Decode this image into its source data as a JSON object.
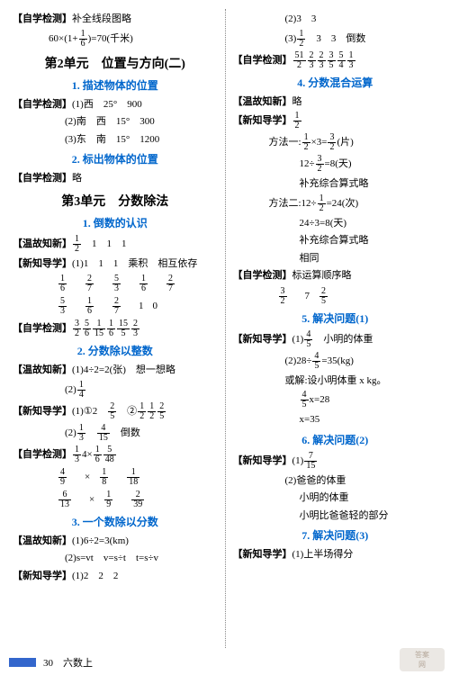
{
  "left": {
    "l1_tag": "【自学检测】",
    "l1_text": "补全线段图略",
    "l2": "60×(1+",
    "l2_fn": "1",
    "l2_fd": "6",
    "l2b": ")=70(千米)",
    "unit2": "第2单元　位置与方向(二)",
    "sec2_1": "1. 描述物体的位置",
    "l3_tag": "【自学检测】",
    "l3a": "(1)西　25°　900",
    "l3b": "(2)南　西　15°　300",
    "l3c": "(3)东　南　15°　1200",
    "sec2_2": "2. 标出物体的位置",
    "l4_tag": "【自学检测】",
    "l4": "略",
    "unit3": "第3单元　分数除法",
    "sec3_1": "1. 倒数的认识",
    "l5_tag": "【温故知新】",
    "l5n": "1",
    "l5d": "2",
    "l5b": "　1　1　1",
    "l6_tag": "【新知导学】",
    "l6": "(1)1　1　1　乘积　相互依存",
    "r1": [
      [
        "1",
        "6"
      ],
      [
        "2",
        "7"
      ],
      [
        "5",
        "3"
      ],
      [
        "1",
        "6"
      ],
      [
        "2",
        "7"
      ]
    ],
    "r2": [
      [
        "5",
        "3"
      ],
      [
        "1",
        "6"
      ],
      [
        "2",
        "7"
      ],
      "1",
      "0"
    ],
    "l7_tag": "【自学检测】",
    "r3": [
      [
        "3",
        "2"
      ],
      [
        "5",
        "6"
      ],
      [
        "1",
        "15"
      ],
      [
        "1",
        "6"
      ],
      [
        "15",
        "5"
      ],
      [
        "2",
        "3"
      ]
    ],
    "sec3_2": "2. 分数除以整数",
    "l8_tag": "【温故知新】",
    "l8": "(1)4÷2=2(张)　想一想略",
    "l8b": "(2)",
    "l8bn": "1",
    "l8bd": "4",
    "l9_tag": "【新知导学】",
    "l9a": "(1)①2　",
    "l9an": "2",
    "l9ad": "5",
    "l9b": "　②",
    "l9f": [
      [
        "1",
        "2"
      ],
      [
        "1",
        "2"
      ],
      [
        "2",
        "5"
      ]
    ],
    "l9c": "(2)",
    "l9cn1": "1",
    "l9cd1": "3",
    "l9cn2": "4",
    "l9cd2": "15",
    "l9ct": "　倒数",
    "l10_tag": "【自学检测】",
    "r4a": [
      [
        "1",
        "3"
      ],
      "4",
      "×",
      [
        "1",
        "6"
      ],
      [
        "5",
        "48"
      ]
    ],
    "r4b": [
      [
        "4",
        "9"
      ],
      "×",
      [
        "1",
        "8"
      ],
      [
        "1",
        "18"
      ]
    ],
    "r4c": [
      [
        "6",
        "13"
      ],
      "×",
      [
        "1",
        "9"
      ],
      [
        "2",
        "39"
      ]
    ],
    "sec3_3": "3. 一个数除以分数",
    "l11_tag": "【温故知新】",
    "l11": "(1)6÷2=3(km)",
    "l11b": "(2)s=vt　v=s÷t　t=s÷v",
    "l12_tag": "【新知导学】",
    "l12": "(1)2　2　2"
  },
  "right": {
    "l1": "(2)3　3",
    "l2": "(3)",
    "l2n": "1",
    "l2d": "2",
    "l2b": "　3　3　倒数",
    "l3_tag": "【自学检测】",
    "r1": [
      [
        "51",
        "2"
      ],
      [
        "2",
        "3"
      ],
      [
        "2",
        "3"
      ],
      [
        "3",
        "5"
      ],
      [
        "5",
        "4"
      ],
      [
        "1",
        "3"
      ]
    ],
    "sec4": "4. 分数混合运算",
    "l4_tag": "【温故知新】",
    "l4": "略",
    "l5_tag": "【新知导学】",
    "l5n": "1",
    "l5d": "2",
    "m1a": "方法一:",
    "m1an1": "1",
    "m1ad1": "2",
    "m1ax": "×3=",
    "m1an2": "3",
    "m1ad2": "2",
    "m1ae": "(片)",
    "m1b": "12÷",
    "m1bn": "3",
    "m1bd": "2",
    "m1be": "=8(天)",
    "m1c": "补充综合算式略",
    "m2a": "方法二:12÷",
    "m2an": "1",
    "m2ad": "2",
    "m2ae": "=24(次)",
    "m2b": "24÷3=8(天)",
    "m2c": "补充综合算式略",
    "same": "相同",
    "l6_tag": "【自学检测】",
    "l6": "标运算顺序略",
    "r2": [
      [
        "3",
        "2"
      ],
      "7",
      [
        "2",
        "5"
      ]
    ],
    "sec5": "5. 解决问题(1)",
    "l7_tag": "【新知导学】",
    "l7": "(1)",
    "l7n": "4",
    "l7d": "5",
    "l7b": "　小明的体重",
    "l8": "(2)28÷",
    "l8n": "4",
    "l8d": "5",
    "l8e": "=35(kg)",
    "l8b": "或解:设小明体重 x kg。",
    "l8c1n": "4",
    "l8c1d": "5",
    "l8c1": "x=28",
    "l8c2": "x=35",
    "sec6": "6. 解决问题(2)",
    "l9_tag": "【新知导学】",
    "l9": "(1)",
    "l9n": "7",
    "l9d": "15",
    "l10a": "(2)爸爸的体重",
    "l10b": "小明的体重",
    "l10c": "小明比爸爸轻的部分",
    "sec7": "7. 解决问题(3)",
    "l11_tag": "【新知导学】",
    "l11": "(1)上半场得分"
  },
  "footer": "30　六数上",
  "watermark_t": "答案",
  "watermark_b": "网"
}
